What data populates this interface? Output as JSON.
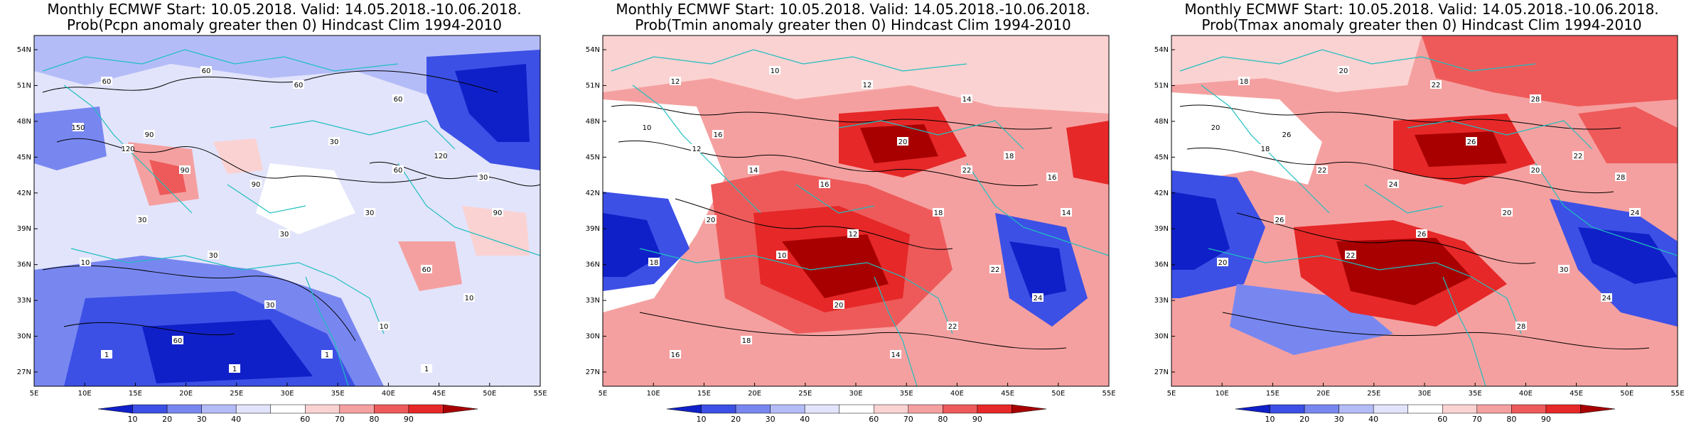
{
  "panels": [
    {
      "id": "pcpn",
      "title_line1": "Monthly ECMWF Start: 10.05.2018. Valid: 14.05.2018.-10.06.2018.",
      "title_line2": "Prob(Pcpn anomaly greater then 0) Hindcast Clim 1994-2010",
      "contour_labels": [
        "60",
        "60",
        "60",
        "60",
        "90",
        "150",
        "120",
        "90",
        "90",
        "30",
        "60",
        "120",
        "30",
        "90",
        "30",
        "30",
        "30",
        "60",
        "30",
        "10",
        "10",
        "10",
        "30",
        "60",
        "1",
        "1",
        "1",
        "1"
      ]
    },
    {
      "id": "tmin",
      "title_line1": "Monthly ECMWF Start: 10.05.2018. Valid: 14.05.2018.-10.06.2018.",
      "title_line2": "Prob(Tmin anomaly greater then 0) Hindcast Clim 1994-2010",
      "contour_labels": [
        "12",
        "10",
        "12",
        "14",
        "16",
        "10",
        "12",
        "14",
        "16",
        "20",
        "22",
        "18",
        "16",
        "14",
        "12",
        "10",
        "18",
        "22",
        "20",
        "18",
        "24",
        "22",
        "20",
        "18",
        "16",
        "14"
      ]
    },
    {
      "id": "tmax",
      "title_line1": "Monthly ECMWF Start: 10.05.2018. Valid: 14.05.2018.-10.06.2018.",
      "title_line2": "Prob(Tmax anomaly greater then 0) Hindcast Clim 1994-2010",
      "contour_labels": [
        "18",
        "20",
        "22",
        "28",
        "26",
        "20",
        "18",
        "22",
        "24",
        "26",
        "20",
        "22",
        "28",
        "24",
        "26",
        "22",
        "20",
        "30",
        "26",
        "20",
        "24",
        "28"
      ]
    }
  ],
  "axes": {
    "lat_labels": [
      "54N",
      "51N",
      "48N",
      "45N",
      "42N",
      "39N",
      "36N",
      "33N",
      "30N",
      "27N"
    ],
    "lon_labels": [
      "5E",
      "10E",
      "15E",
      "20E",
      "25E",
      "30E",
      "35E",
      "40E",
      "45E",
      "50E",
      "55E"
    ]
  },
  "colorbar": {
    "ticks": [
      "10",
      "20",
      "30",
      "40",
      "60",
      "70",
      "80",
      "90"
    ],
    "colors": [
      "#1020c8",
      "#3c50e6",
      "#7887f0",
      "#b4bcf8",
      "#e2e4fb",
      "#ffffff",
      "#fbd2d2",
      "#f5a0a0",
      "#ee5a5a",
      "#e62828",
      "#a80000"
    ]
  },
  "colors": {
    "coast": "#1fbfbf",
    "contour": "#000000",
    "grid": "#bbbbbb"
  }
}
